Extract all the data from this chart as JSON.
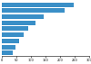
{
  "values": [
    248,
    215,
    145,
    115,
    90,
    75,
    60,
    48,
    38
  ],
  "bar_color": "#3a8fc7",
  "background_color": "#ffffff",
  "xlim": [
    0,
    300
  ],
  "xtick_values": [
    0,
    50,
    100,
    150,
    200,
    250,
    300
  ],
  "bar_height": 0.75,
  "figsize": [
    1.0,
    0.71
  ]
}
